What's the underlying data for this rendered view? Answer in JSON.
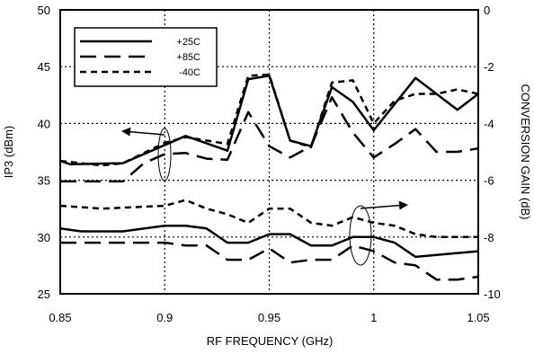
{
  "chart_data": {
    "type": "line",
    "xlabel": "RF FREQUENCY (GHz)",
    "ylabel_left": "IP3 (dBm)",
    "ylabel_right": "CONVERSION GAIN (dB)",
    "xlim": [
      0.85,
      1.05
    ],
    "ylim_left": [
      25,
      50
    ],
    "ylim_right": [
      -10,
      0
    ],
    "x_ticks": [
      "0.85",
      "0.9",
      "0.95",
      "1",
      "1.05"
    ],
    "y_left_ticks": [
      "25",
      "30",
      "35",
      "40",
      "45",
      "50"
    ],
    "y_right_ticks": [
      "-10",
      "-8",
      "-6",
      "-4",
      "-2",
      "0"
    ],
    "grid": "dotted",
    "legend_position": "top-left",
    "legend": [
      {
        "name": "+25C",
        "dash": "solid"
      },
      {
        "name": "+85C",
        "dash": "long-dash"
      },
      {
        "name": "-40C",
        "dash": "short-dash"
      }
    ],
    "series": [
      {
        "name": "+25C",
        "axis": "left",
        "metric": "IP3",
        "dash": "solid",
        "x": [
          0.85,
          0.855,
          0.88,
          0.91,
          0.93,
          0.94,
          0.95,
          0.96,
          0.97,
          0.98,
          0.99,
          1.0,
          1.02,
          1.04,
          1.05
        ],
        "y": [
          36.7,
          36.4,
          36.5,
          38.9,
          37.6,
          43.9,
          44.2,
          38.5,
          38.0,
          43.2,
          41.9,
          39.4,
          44.0,
          41.2,
          42.6
        ]
      },
      {
        "name": "+85C",
        "axis": "left",
        "metric": "IP3",
        "dash": "long-dash",
        "x": [
          0.85,
          0.87,
          0.88,
          0.89,
          0.9,
          0.91,
          0.92,
          0.93,
          0.94,
          0.95,
          0.96,
          0.97,
          0.98,
          0.99,
          1.0,
          1.01,
          1.02,
          1.03,
          1.04,
          1.05
        ],
        "y": [
          34.9,
          34.9,
          34.9,
          36.5,
          37.3,
          37.4,
          36.9,
          36.8,
          41.0,
          38.0,
          37.0,
          38.0,
          42.3,
          39.2,
          37.0,
          38.2,
          39.5,
          37.5,
          37.5,
          37.8
        ]
      },
      {
        "name": "-40C",
        "axis": "left",
        "metric": "IP3",
        "dash": "short-dash",
        "x": [
          0.85,
          0.87,
          0.88,
          0.89,
          0.9,
          0.91,
          0.92,
          0.93,
          0.94,
          0.95,
          0.96,
          0.97,
          0.98,
          0.99,
          1.0,
          1.01,
          1.02,
          1.03,
          1.04,
          1.05
        ],
        "y": [
          36.7,
          36.3,
          36.5,
          37.4,
          38.3,
          38.8,
          38.5,
          38.2,
          44.2,
          44.3,
          38.5,
          37.9,
          43.6,
          43.8,
          40.0,
          42.0,
          42.6,
          42.6,
          43.0,
          42.6
        ]
      },
      {
        "name": "+25C",
        "axis": "right",
        "metric": "Conversion Gain",
        "dash": "solid",
        "x": [
          0.85,
          0.86,
          0.88,
          0.9,
          0.91,
          0.92,
          0.93,
          0.94,
          0.95,
          0.96,
          0.97,
          0.98,
          0.99,
          1.0,
          1.01,
          1.02,
          1.05
        ],
        "y": [
          -7.7,
          -7.8,
          -7.8,
          -7.6,
          -7.6,
          -7.7,
          -8.2,
          -8.2,
          -7.9,
          -7.9,
          -8.3,
          -8.3,
          -8.0,
          -8.0,
          -8.2,
          -8.7,
          -8.5
        ]
      },
      {
        "name": "+85C",
        "axis": "right",
        "metric": "Conversion Gain",
        "dash": "long-dash",
        "x": [
          0.85,
          0.88,
          0.9,
          0.91,
          0.92,
          0.93,
          0.94,
          0.95,
          0.96,
          0.97,
          0.98,
          0.99,
          1.0,
          1.01,
          1.02,
          1.03,
          1.04,
          1.05
        ],
        "y": [
          -8.2,
          -8.2,
          -8.2,
          -8.3,
          -8.3,
          -8.8,
          -8.8,
          -8.4,
          -8.9,
          -8.8,
          -8.8,
          -8.3,
          -8.5,
          -8.9,
          -9.0,
          -9.5,
          -9.5,
          -9.4
        ]
      },
      {
        "name": "-40C",
        "axis": "right",
        "metric": "Conversion Gain",
        "dash": "short-dash",
        "x": [
          0.85,
          0.87,
          0.9,
          0.91,
          0.92,
          0.93,
          0.94,
          0.95,
          0.96,
          0.97,
          0.98,
          0.99,
          1.0,
          1.01,
          1.02,
          1.03,
          1.05
        ],
        "y": [
          -6.9,
          -7.0,
          -6.9,
          -6.7,
          -7.0,
          -7.2,
          -7.5,
          -7.0,
          -7.0,
          -7.5,
          -7.6,
          -7.3,
          -7.5,
          -7.6,
          -7.9,
          -8.0,
          -8.0
        ]
      }
    ]
  }
}
